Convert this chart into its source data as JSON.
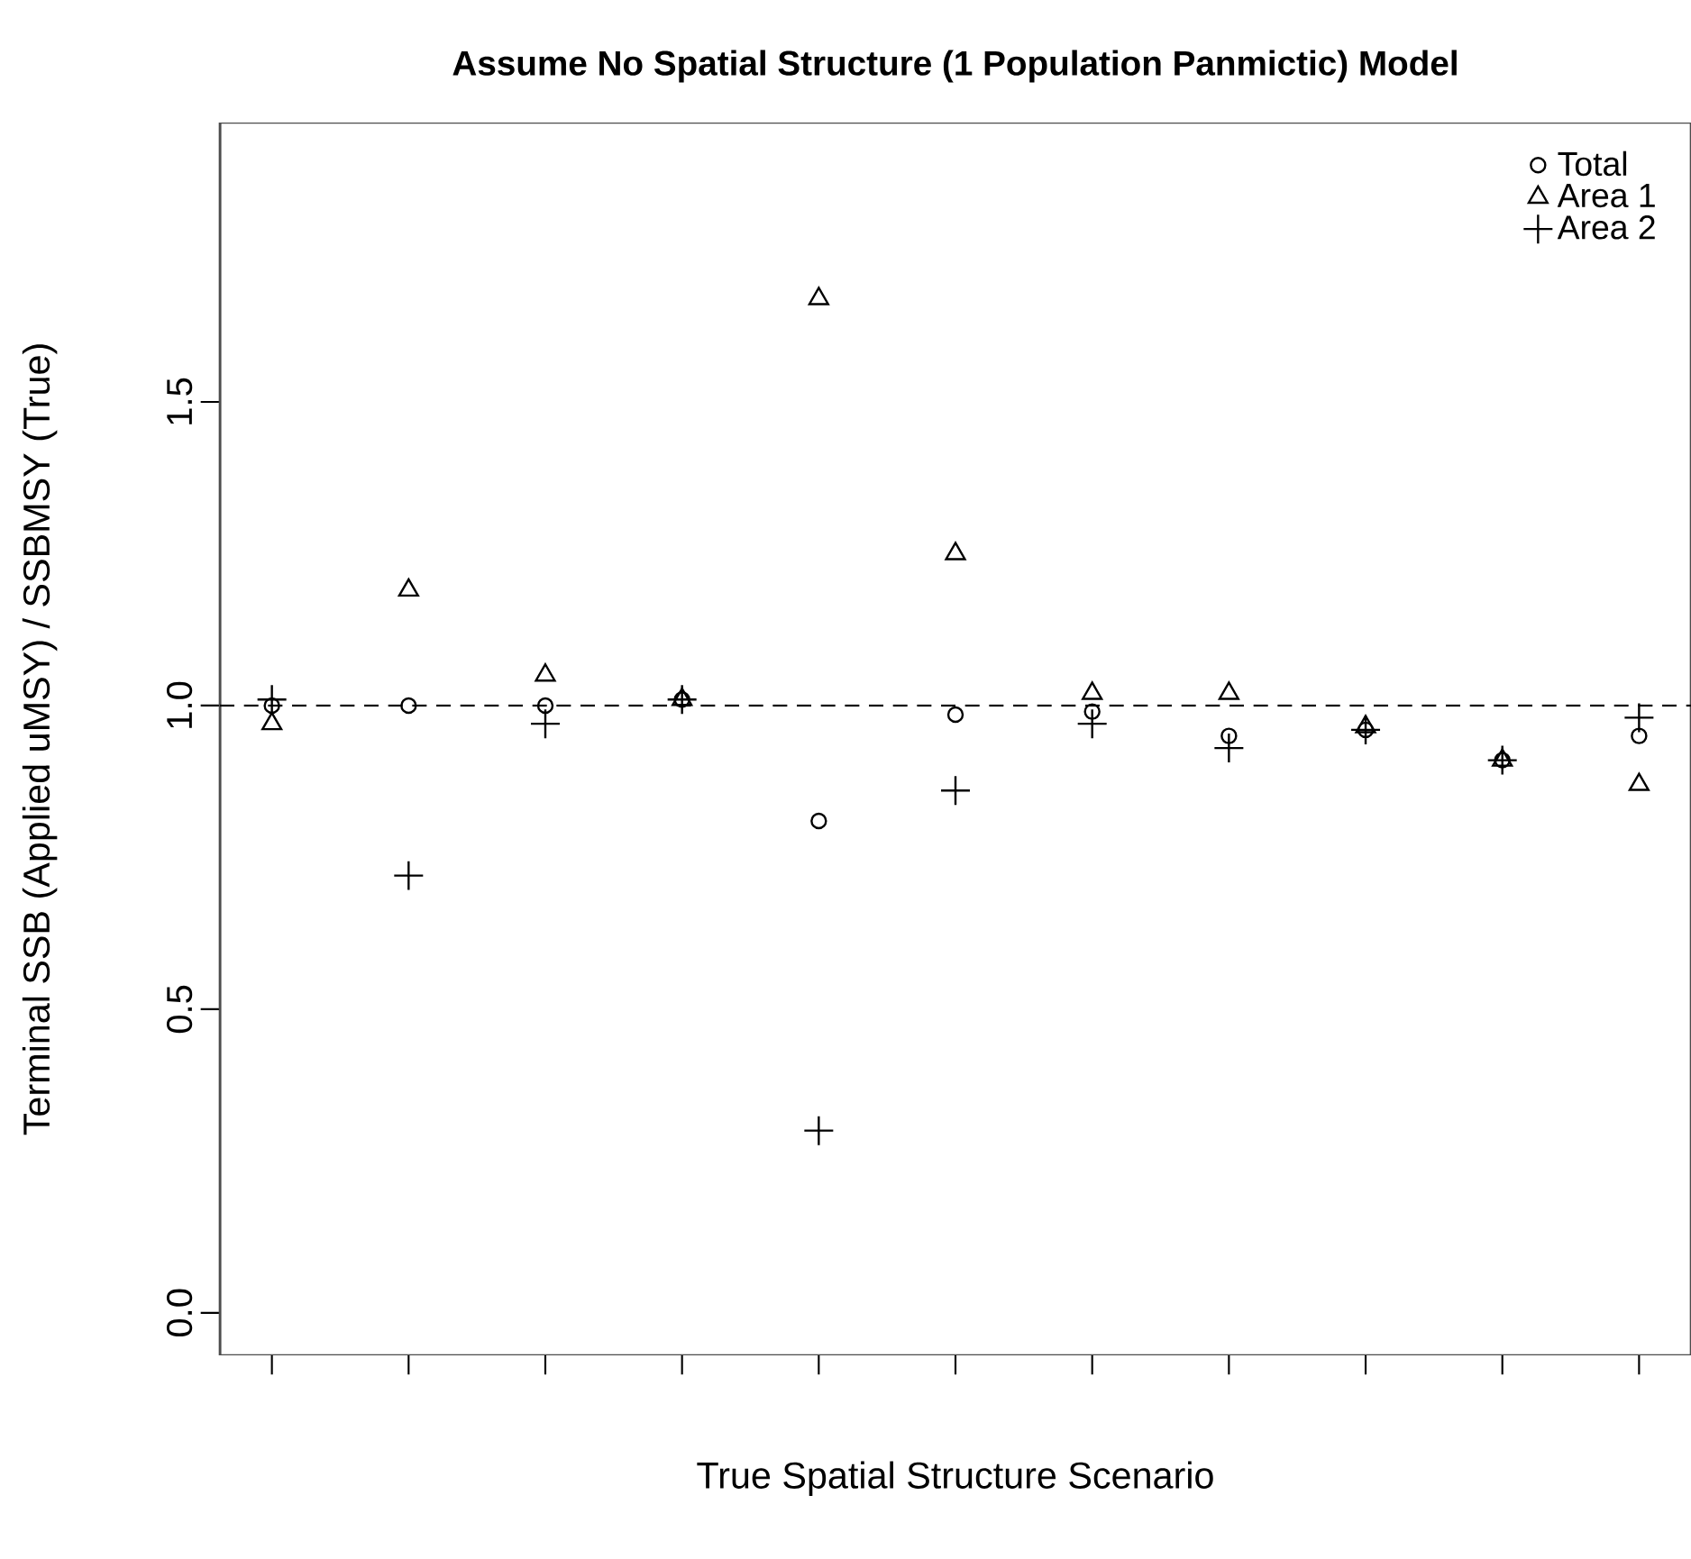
{
  "chart_data": {
    "type": "scatter",
    "title": "Assume No Spatial Structure (1 Population Panmictic) Model",
    "xlabel": "True Spatial Structure Scenario",
    "ylabel": "Terminal SSB (Applied uMSY) / SSBMSY (True)",
    "categories": [
      null,
      null,
      null,
      null,
      null,
      null,
      null,
      null,
      null,
      null,
      null
    ],
    "ylim": [
      -0.07,
      1.96
    ],
    "yticks": [
      {
        "value": 0,
        "label": "0.0"
      },
      0.5,
      {
        "value": 1,
        "label": "1.0"
      },
      1.5
    ],
    "tick_labels": "y",
    "legend": "top right",
    "grid": false,
    "ref_lines": [
      {
        "axis": "y",
        "value": 1.0,
        "line_style": "dashed",
        "color": "#000000"
      }
    ],
    "series": [
      {
        "name": "Total",
        "color": "#000000",
        "marker": "circle",
        "values": [
          1.0,
          1.0,
          1.0,
          1.01,
          0.81,
          0.985,
          0.99,
          0.95,
          0.96,
          0.91,
          0.95
        ]
      },
      {
        "name": "Area 1",
        "color": "#000000",
        "marker": "triangle",
        "values": [
          0.97,
          1.19,
          1.05,
          1.01,
          1.67,
          1.25,
          1.02,
          1.02,
          0.965,
          0.91,
          0.87
        ]
      },
      {
        "name": "Area 2",
        "color": "#000000",
        "marker": "cross",
        "values": [
          1.01,
          0.72,
          0.97,
          1.01,
          0.3,
          0.86,
          0.97,
          0.93,
          0.96,
          0.91,
          0.98
        ]
      }
    ]
  }
}
